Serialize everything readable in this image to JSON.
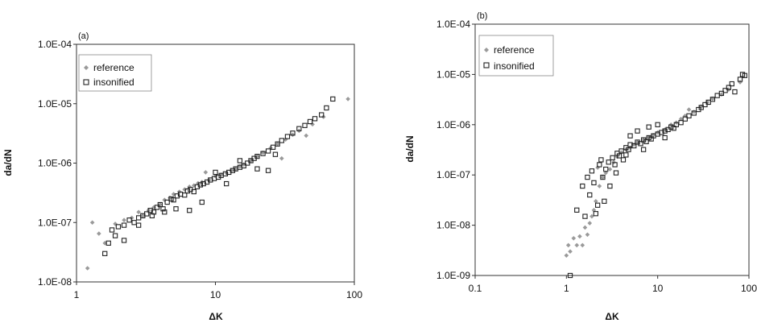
{
  "chart_data": [
    {
      "type": "scatter",
      "panel_label": "(a)",
      "xlabel": "ΔK",
      "ylabel": "da/dN",
      "xscale": "log",
      "yscale": "log",
      "xlim": [
        1,
        100
      ],
      "ylim": [
        1e-08,
        0.0001
      ],
      "x_ticks": [
        1,
        10,
        100
      ],
      "x_tick_labels": [
        "1",
        "10",
        "100"
      ],
      "y_ticks": [
        1e-08,
        1e-07,
        1e-06,
        1e-05,
        0.0001
      ],
      "y_tick_labels": [
        "1.0E-08",
        "1.0E-07",
        "1.0E-06",
        "1.0E-05",
        "1.0E-04"
      ],
      "grid": false,
      "legend_position": "top-left",
      "series": [
        {
          "name": "reference",
          "marker": "diamond",
          "color": "#9a9a9a",
          "points": [
            [
              1.2,
              1.7e-08
            ],
            [
              1.3,
              1e-07
            ],
            [
              1.45,
              6.5e-08
            ],
            [
              1.6,
              4.5e-08
            ],
            [
              1.9,
              9.5e-08
            ],
            [
              2.2,
              1.1e-07
            ],
            [
              2.5,
              1.2e-07
            ],
            [
              2.8,
              1.5e-07
            ],
            [
              3.0,
              1.3e-07
            ],
            [
              3.3,
              1.6e-07
            ],
            [
              3.6,
              1.8e-07
            ],
            [
              4.0,
              2e-07
            ],
            [
              4.3,
              2.4e-07
            ],
            [
              4.7,
              2.6e-07
            ],
            [
              5.0,
              3e-07
            ],
            [
              5.5,
              3.3e-07
            ],
            [
              6.0,
              3.6e-07
            ],
            [
              6.5,
              4e-07
            ],
            [
              7.0,
              4.2e-07
            ],
            [
              7.5,
              4.6e-07
            ],
            [
              8.0,
              4.8e-07
            ],
            [
              8.5,
              7e-07
            ],
            [
              9.0,
              5.2e-07
            ],
            [
              10.0,
              6e-07
            ],
            [
              11.0,
              6.4e-07
            ],
            [
              12.0,
              6.8e-07
            ],
            [
              13.0,
              7.5e-07
            ],
            [
              14.0,
              8e-07
            ],
            [
              15.0,
              8.8e-07
            ],
            [
              16.0,
              9.5e-07
            ],
            [
              18.0,
              1.1e-06
            ],
            [
              20.0,
              1.3e-06
            ],
            [
              22.0,
              1.5e-06
            ],
            [
              25.0,
              1.8e-06
            ],
            [
              28.0,
              2.1e-06
            ],
            [
              30.0,
              1.2e-06
            ],
            [
              32.0,
              2.5e-06
            ],
            [
              36.0,
              3e-06
            ],
            [
              40.0,
              3.5e-06
            ],
            [
              45.0,
              2.9e-06
            ],
            [
              50.0,
              4.5e-06
            ],
            [
              60.0,
              6e-06
            ],
            [
              90.0,
              1.2e-05
            ]
          ]
        },
        {
          "name": "insonified",
          "marker": "square",
          "color": "#222222",
          "points": [
            [
              1.6,
              3e-08
            ],
            [
              1.7,
              4.5e-08
            ],
            [
              1.8,
              7.5e-08
            ],
            [
              1.9,
              6e-08
            ],
            [
              2.0,
              8.5e-08
            ],
            [
              2.2,
              9e-08
            ],
            [
              2.4,
              1.1e-07
            ],
            [
              2.6,
              1e-07
            ],
            [
              2.8,
              1.2e-07
            ],
            [
              3.0,
              1.3e-07
            ],
            [
              3.2,
              1.4e-07
            ],
            [
              3.4,
              1.6e-07
            ],
            [
              3.6,
              1.5e-07
            ],
            [
              3.8,
              1.8e-07
            ],
            [
              4.0,
              2e-07
            ],
            [
              4.2,
              1.7e-07
            ],
            [
              4.5,
              2.2e-07
            ],
            [
              4.8,
              2.5e-07
            ],
            [
              5.0,
              2.4e-07
            ],
            [
              5.3,
              2.8e-07
            ],
            [
              5.6,
              3e-07
            ],
            [
              6.0,
              2.9e-07
            ],
            [
              6.3,
              3.4e-07
            ],
            [
              6.6,
              3.6e-07
            ],
            [
              7.0,
              3.3e-07
            ],
            [
              7.4,
              4e-07
            ],
            [
              7.8,
              4.3e-07
            ],
            [
              8.2,
              4.5e-07
            ],
            [
              8.7,
              4.8e-07
            ],
            [
              9.2,
              5.2e-07
            ],
            [
              9.8,
              5.5e-07
            ],
            [
              10.5,
              5.8e-07
            ],
            [
              11.0,
              6.2e-07
            ],
            [
              11.8,
              6.6e-07
            ],
            [
              12.5,
              7e-07
            ],
            [
              13.3,
              7.5e-07
            ],
            [
              14.0,
              8e-07
            ],
            [
              15.0,
              8.5e-07
            ],
            [
              16.0,
              9e-07
            ],
            [
              17.0,
              1e-06
            ],
            [
              18.0,
              1.1e-06
            ],
            [
              19.0,
              1.2e-06
            ],
            [
              20.0,
              1.3e-06
            ],
            [
              22.0,
              1.45e-06
            ],
            [
              24.0,
              1.6e-06
            ],
            [
              26.0,
              1.85e-06
            ],
            [
              28.0,
              2.1e-06
            ],
            [
              30.0,
              2.4e-06
            ],
            [
              33.0,
              2.8e-06
            ],
            [
              36.0,
              3.2e-06
            ],
            [
              40.0,
              3.8e-06
            ],
            [
              44.0,
              4.3e-06
            ],
            [
              48.0,
              5e-06
            ],
            [
              52.0,
              5.6e-06
            ],
            [
              58.0,
              6.5e-06
            ],
            [
              63.0,
              8.5e-06
            ],
            [
              70.0,
              1.2e-05
            ],
            [
              6.5,
              1.6e-07
            ],
            [
              8.0,
              2.2e-07
            ],
            [
              2.2,
              5e-08
            ],
            [
              3.5,
              1.3e-07
            ],
            [
              5.2,
              1.7e-07
            ],
            [
              4.3,
              1.5e-07
            ],
            [
              12.0,
              4.5e-07
            ],
            [
              15.0,
              1.1e-06
            ],
            [
              20.0,
              8e-07
            ],
            [
              24.0,
              7.5e-07
            ],
            [
              27.0,
              1.4e-06
            ],
            [
              10.0,
              7e-07
            ],
            [
              2.8,
              9e-08
            ]
          ]
        }
      ]
    },
    {
      "type": "scatter",
      "panel_label": "(b)",
      "xlabel": "ΔK",
      "ylabel": "da/dN",
      "xscale": "log",
      "yscale": "log",
      "xlim": [
        0.1,
        100
      ],
      "ylim": [
        1e-09,
        0.0001
      ],
      "x_ticks": [
        0.1,
        1,
        10,
        100
      ],
      "x_tick_labels": [
        "0.1",
        "1",
        "10",
        "100"
      ],
      "y_ticks": [
        1e-09,
        1e-08,
        1e-07,
        1e-06,
        1e-05,
        0.0001
      ],
      "y_tick_labels": [
        "1.0E-09",
        "1.0E-08",
        "1.0E-07",
        "1.0E-06",
        "1.0E-05",
        "1.0E-04"
      ],
      "grid": false,
      "legend_position": "top-left",
      "series": [
        {
          "name": "reference",
          "marker": "diamond",
          "color": "#9a9a9a",
          "points": [
            [
              1.0,
              2.5e-09
            ],
            [
              1.05,
              4e-09
            ],
            [
              1.1,
              3e-09
            ],
            [
              1.2,
              5.5e-09
            ],
            [
              1.3,
              4e-09
            ],
            [
              1.4,
              6e-09
            ],
            [
              1.5,
              4e-09
            ],
            [
              1.6,
              9e-09
            ],
            [
              1.7,
              6.5e-09
            ],
            [
              1.8,
              1.1e-08
            ],
            [
              1.9,
              1.5e-08
            ],
            [
              2.0,
              2e-08
            ],
            [
              2.1,
              3e-08
            ],
            [
              2.2,
              1.4e-07
            ],
            [
              2.3,
              6e-08
            ],
            [
              2.5,
              9e-08
            ],
            [
              2.7,
              1.1e-07
            ],
            [
              3.0,
              1.3e-07
            ],
            [
              3.3,
              1.8e-07
            ],
            [
              3.6,
              2.3e-07
            ],
            [
              4.0,
              2.8e-07
            ],
            [
              4.5,
              3.2e-07
            ],
            [
              5.0,
              3.5e-07
            ],
            [
              5.5,
              4e-07
            ],
            [
              6.0,
              4.5e-07
            ],
            [
              7.0,
              5e-07
            ],
            [
              8.0,
              5.6e-07
            ],
            [
              9.0,
              6.2e-07
            ],
            [
              10.0,
              7e-07
            ],
            [
              12.0,
              8e-07
            ],
            [
              14.0,
              1e-06
            ],
            [
              16.0,
              1.1e-06
            ],
            [
              18.0,
              1.3e-06
            ],
            [
              20.0,
              1.5e-06
            ],
            [
              22.0,
              2e-06
            ],
            [
              25.0,
              1.8e-06
            ],
            [
              30.0,
              2.3e-06
            ],
            [
              35.0,
              2.8e-06
            ],
            [
              40.0,
              3.3e-06
            ],
            [
              50.0,
              4e-06
            ],
            [
              60.0,
              5e-06
            ],
            [
              80.0,
              7e-06
            ]
          ]
        },
        {
          "name": "insonified",
          "marker": "square",
          "color": "#222222",
          "points": [
            [
              1.1,
              1e-09
            ],
            [
              1.3,
              2e-08
            ],
            [
              1.5,
              6e-08
            ],
            [
              1.6,
              1.5e-08
            ],
            [
              1.7,
              9e-08
            ],
            [
              1.8,
              4e-08
            ],
            [
              1.9,
              1.2e-07
            ],
            [
              2.0,
              7e-08
            ],
            [
              2.1,
              1.7e-08
            ],
            [
              2.2,
              2.5e-08
            ],
            [
              2.3,
              1.6e-07
            ],
            [
              2.5,
              9e-08
            ],
            [
              2.6,
              3e-08
            ],
            [
              2.7,
              1.3e-07
            ],
            [
              2.9,
              1.8e-07
            ],
            [
              3.0,
              6e-08
            ],
            [
              3.2,
              2.2e-07
            ],
            [
              3.4,
              1.6e-07
            ],
            [
              3.6,
              2.7e-07
            ],
            [
              3.8,
              2.4e-07
            ],
            [
              4.0,
              3e-07
            ],
            [
              4.2,
              2e-07
            ],
            [
              4.5,
              3.5e-07
            ],
            [
              4.8,
              3.2e-07
            ],
            [
              5.0,
              4e-07
            ],
            [
              5.5,
              3.8e-07
            ],
            [
              6.0,
              4.5e-07
            ],
            [
              6.5,
              4.2e-07
            ],
            [
              7.0,
              5e-07
            ],
            [
              7.5,
              4.6e-07
            ],
            [
              8.0,
              5.5e-07
            ],
            [
              8.5,
              5.2e-07
            ],
            [
              9.0,
              6e-07
            ],
            [
              10.0,
              6.5e-07
            ],
            [
              11.0,
              7e-07
            ],
            [
              12.0,
              7.5e-07
            ],
            [
              13.0,
              8e-07
            ],
            [
              14.0,
              9e-07
            ],
            [
              15.0,
              8.5e-07
            ],
            [
              16.0,
              1e-06
            ],
            [
              18.0,
              1.1e-06
            ],
            [
              20.0,
              1.3e-06
            ],
            [
              22.0,
              1.5e-06
            ],
            [
              25.0,
              1.7e-06
            ],
            [
              28.0,
              2e-06
            ],
            [
              30.0,
              2.2e-06
            ],
            [
              33.0,
              2.5e-06
            ],
            [
              36.0,
              2.8e-06
            ],
            [
              40.0,
              3.2e-06
            ],
            [
              45.0,
              3.8e-06
            ],
            [
              50.0,
              4.2e-06
            ],
            [
              55.0,
              4.8e-06
            ],
            [
              60.0,
              5.5e-06
            ],
            [
              65.0,
              6.5e-06
            ],
            [
              70.0,
              4.5e-06
            ],
            [
              80.0,
              8e-06
            ],
            [
              85.0,
              1e-05
            ],
            [
              90.0,
              9.5e-06
            ],
            [
              5.0,
              6e-07
            ],
            [
              6.0,
              7.5e-07
            ],
            [
              8.0,
              9e-07
            ],
            [
              10.0,
              1e-06
            ],
            [
              3.5,
              1.1e-07
            ],
            [
              4.5,
              2.5e-07
            ],
            [
              7.0,
              3.2e-07
            ],
            [
              12.0,
              5.5e-07
            ],
            [
              2.4,
              2e-07
            ]
          ]
        }
      ]
    }
  ]
}
